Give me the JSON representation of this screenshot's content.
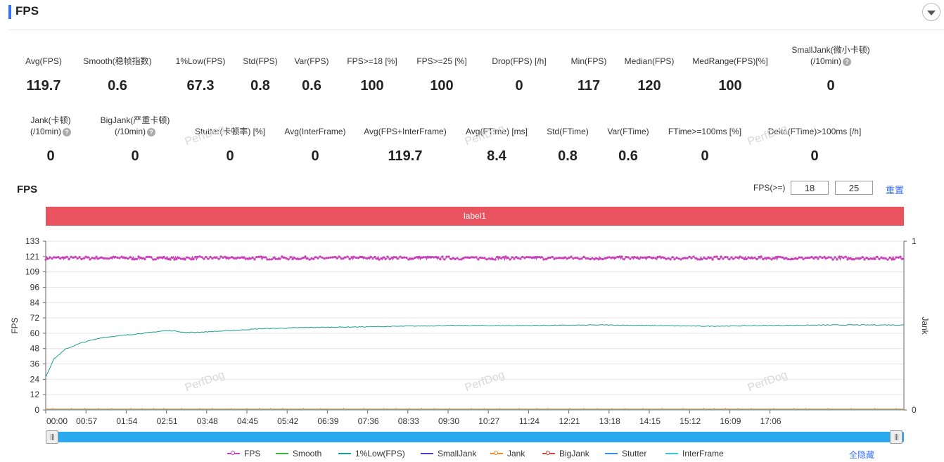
{
  "header": {
    "title": "FPS"
  },
  "metrics_row1": [
    {
      "label": "Avg(FPS)",
      "value": "119.7",
      "help": false
    },
    {
      "label": "Smooth(稳帧指数)",
      "value": "0.6",
      "help": true
    },
    {
      "label": "1%Low(FPS)",
      "value": "67.3",
      "help": false
    },
    {
      "label": "Std(FPS)",
      "value": "0.8",
      "help": false
    },
    {
      "label": "Var(FPS)",
      "value": "0.6",
      "help": false
    },
    {
      "label": "FPS>=18 [%]",
      "value": "100",
      "help": false
    },
    {
      "label": "FPS>=25 [%]",
      "value": "100",
      "help": false
    },
    {
      "label": "Drop(FPS) [/h]",
      "value": "0",
      "help": true
    },
    {
      "label": "Min(FPS)",
      "value": "117",
      "help": false
    },
    {
      "label": "Median(FPS)",
      "value": "120",
      "help": false
    },
    {
      "label": "MedRange(FPS)[%]",
      "value": "100",
      "help": false
    },
    {
      "label": "SmallJank(微小卡顿)",
      "label2": "(/10min)",
      "value": "0",
      "help": true
    }
  ],
  "metrics_row2": [
    {
      "label": "Jank(卡顿)",
      "label2": "(/10min)",
      "value": "0",
      "help": true
    },
    {
      "label": "BigJank(严重卡顿)",
      "label2": "(/10min)",
      "value": "0",
      "help": true
    },
    {
      "label": "Stutter(卡顿率) [%]",
      "value": "0",
      "help": false
    },
    {
      "label": "Avg(InterFrame)",
      "value": "0",
      "help": false
    },
    {
      "label": "Avg(FPS+InterFrame)",
      "value": "119.7",
      "help": false
    },
    {
      "label": "Avg(FTime) [ms]",
      "value": "8.4",
      "help": false
    },
    {
      "label": "Std(FTime)",
      "value": "0.8",
      "help": false
    },
    {
      "label": "Var(FTime)",
      "value": "0.6",
      "help": false
    },
    {
      "label": "FTime>=100ms [%]",
      "value": "0",
      "help": false
    },
    {
      "label": "Delta(FTime)>100ms [/h]",
      "value": "0",
      "help": true
    }
  ],
  "help_glyph": "?",
  "chart_section": {
    "title": "FPS",
    "threshold_label": "FPS(>=)",
    "threshold1": "18",
    "threshold2": "25",
    "reset_label": "重置",
    "band_label": "label1",
    "hide_all_label": "全隐藏",
    "watermark": "PerfDog"
  },
  "chart_data": {
    "type": "line",
    "x_ticks": [
      "00:00",
      "00:57",
      "01:54",
      "02:51",
      "03:48",
      "04:45",
      "05:42",
      "06:39",
      "07:36",
      "08:33",
      "09:30",
      "10:27",
      "11:24",
      "12:21",
      "13:18",
      "14:15",
      "15:12",
      "16:09",
      "17:06"
    ],
    "y_ticks": [
      "133",
      "121",
      "109",
      "96",
      "84",
      "72",
      "60",
      "48",
      "36",
      "24",
      "12",
      "0"
    ],
    "ylabel": "FPS",
    "y2label": "Jank",
    "y2_ticks": [
      "1",
      "0"
    ],
    "ylim": [
      0,
      133
    ],
    "y2lim": [
      0,
      1
    ],
    "x_range_seconds": [
      0,
      1076
    ],
    "legend_position": "bottom",
    "series": [
      {
        "name": "FPS",
        "color": "#c740b8",
        "marker": true,
        "summary": "fluctuates between ~117 and ~121, mean 119.7",
        "values_approx": [
          119.7,
          119.7
        ]
      },
      {
        "name": "Smooth",
        "color": "#3fae49",
        "marker": false,
        "values_approx": [
          0.6,
          0.6
        ]
      },
      {
        "name": "1%Low(FPS)",
        "color": "#1b9e8f",
        "marker": false,
        "points": [
          [
            0,
            26
          ],
          [
            10,
            40
          ],
          [
            25,
            48
          ],
          [
            45,
            53
          ],
          [
            70,
            57
          ],
          [
            100,
            59
          ],
          [
            130,
            61
          ],
          [
            150,
            62.5
          ],
          [
            160,
            62.5
          ],
          [
            175,
            61
          ],
          [
            200,
            61.5
          ],
          [
            230,
            62.5
          ],
          [
            270,
            64
          ],
          [
            330,
            65
          ],
          [
            400,
            65.5
          ],
          [
            500,
            66.5
          ],
          [
            600,
            66.5
          ],
          [
            700,
            67
          ],
          [
            760,
            66.5
          ],
          [
            830,
            66
          ],
          [
            900,
            66.5
          ],
          [
            1000,
            67
          ],
          [
            1076,
            67
          ]
        ]
      },
      {
        "name": "SmallJank",
        "color": "#4a3fd0",
        "marker": false,
        "values_approx": [
          0,
          0
        ]
      },
      {
        "name": "Jank",
        "color": "#f08a24",
        "marker": true,
        "values_approx": [
          0,
          0
        ]
      },
      {
        "name": "BigJank",
        "color": "#e03c3c",
        "marker": true,
        "values_approx": [
          0,
          0
        ]
      },
      {
        "name": "Stutter",
        "color": "#3a8ee6",
        "marker": false,
        "values_approx": [
          0,
          0
        ]
      },
      {
        "name": "InterFrame",
        "color": "#3cc3dd",
        "marker": false,
        "values_approx": [
          0,
          0
        ]
      }
    ]
  }
}
